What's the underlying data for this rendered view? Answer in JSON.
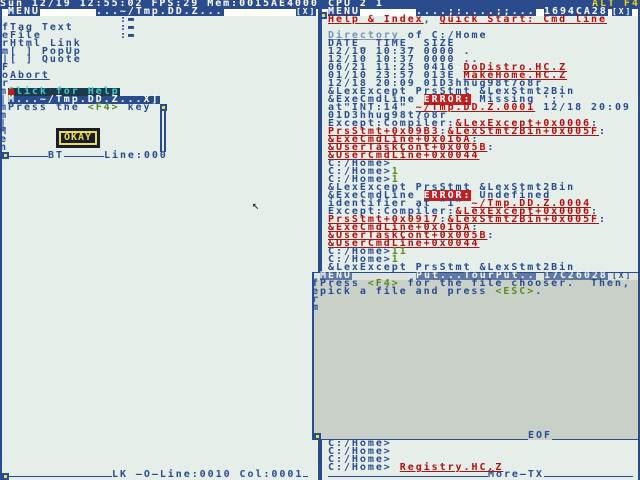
{
  "topbar": {
    "left": "Sun 12/19 12:55:02 FPS:29 Mem:0015AE4000",
    "cpu": "CPU 2 1",
    "alt": "ALT F4"
  },
  "left_window": {
    "menu": "MENU",
    "title": "...~/Tmp.DD.Z...",
    "close": "[X]",
    "status": "LK —O—Line:0010 Col:0001",
    "lines": [
      [
        {
          "t": "fTag Text"
        }
      ],
      [
        {
          "t": "eFile"
        }
      ],
      [
        {
          "t": "rHtml Link"
        }
      ],
      [
        {
          "t": "m[ ] PopUp"
        }
      ],
      [
        {
          "t": "|[ ] Quote"
        }
      ],
      [
        {
          "t": "F"
        }
      ],
      [
        {
          "t": "o"
        },
        {
          "t": "Abort",
          "c": "u"
        }
      ],
      [
        {
          "t": "r"
        }
      ]
    ]
  },
  "popup": {
    "help": "Click for Help",
    "title": "M...~/Tmp.DD.Z...X]",
    "text_pre": "Press the ",
    "key": "<F4>",
    "text_post": " key",
    "ok": "OKAY",
    "status_left": "BT",
    "status_right": "Line:000"
  },
  "right_window": {
    "menu": "MENU",
    "title": "....;;....;;...",
    "addr": "1694CA28",
    "close": "[X]",
    "lines": [
      [
        {
          "t": "Help & Index",
          "c": "r"
        },
        {
          "t": ", "
        },
        {
          "t": "Quick Start: Cmd line",
          "c": "r"
        }
      ],
      [
        {
          "t": ""
        }
      ],
      [
        {
          "t": "Directory",
          "c": "lk"
        },
        {
          "t": " of C:/Home"
        }
      ],
      [
        {
          "t": "DATE_ TIME_ SIZE"
        }
      ],
      [
        {
          "t": "12/10 10:37 0000 ."
        }
      ],
      [
        {
          "t": "12/10 10:37 0000 .."
        }
      ],
      [
        {
          "t": "06/21 11:25 0416 "
        },
        {
          "t": "DoDistro.HC.Z",
          "c": "r"
        }
      ],
      [
        {
          "t": "01/10 23:57 013E "
        },
        {
          "t": "MakeHome.HC.Z",
          "c": "r"
        }
      ],
      [
        {
          "t": "12/18 20:09 01D3hhug98t7o8r"
        }
      ],
      [
        {
          "t": "&LexExcept PrsStmt &LexStmt2Bin"
        }
      ],
      [
        {
          "t": "&ExeCmdLine "
        },
        {
          "t": "ERROR:",
          "c": "err"
        },
        {
          "t": " Missing ';'"
        }
      ],
      [
        {
          "t": "at\"INT:14\" "
        },
        {
          "t": "~/Tmp.DD.Z.0001",
          "c": "r"
        },
        {
          "t": " 12/18 20:09"
        }
      ],
      [
        {
          "t": "01D3hhug98t7o8r"
        }
      ],
      [
        {
          "t": "Except:Compiler:"
        },
        {
          "t": "&LexExcept+0x0006",
          "c": "r"
        },
        {
          "t": ":"
        }
      ],
      [
        {
          "t": "PrsStmt+0x09B3",
          "c": "r"
        },
        {
          "t": ":"
        },
        {
          "t": "&LexStmt2Bin+0x005F",
          "c": "r"
        },
        {
          "t": ":"
        }
      ],
      [
        {
          "t": "&ExeCmdLine+0x016A",
          "c": "r"
        },
        {
          "t": ":"
        }
      ],
      [
        {
          "t": "&UserTaskCont+0x005B",
          "c": "r"
        },
        {
          "t": ":"
        }
      ],
      [
        {
          "t": "&UserCmdLine+0x0044",
          "c": "r"
        }
      ],
      [
        {
          "t": "C:/Home>"
        }
      ],
      [
        {
          "t": "C:/Home>"
        },
        {
          "t": "1",
          "c": "g"
        }
      ],
      [
        {
          "t": "C:/Home>"
        },
        {
          "t": "1",
          "c": "g"
        }
      ],
      [
        {
          "t": "&LexExcept PrsStmt &LexStmt2Bin"
        }
      ],
      [
        {
          "t": "&ExeCmdLine "
        },
        {
          "t": "ERROR:",
          "c": "err"
        },
        {
          "t": " Undefined"
        }
      ],
      [
        {
          "t": "identifier at \"1\" "
        },
        {
          "t": "~/Tmp.DD.Z.0004",
          "c": "r"
        }
      ],
      [
        {
          "t": "Except:Compiler:"
        },
        {
          "t": "&LexExcept+0x0006",
          "c": "r"
        },
        {
          "t": ":"
        }
      ],
      [
        {
          "t": "PrsStmt+0x0917",
          "c": "r"
        },
        {
          "t": ":"
        },
        {
          "t": "&LexStmt2Bin+0x005F",
          "c": "r"
        },
        {
          "t": ":"
        }
      ],
      [
        {
          "t": "&ExeCmdLine+0x016A",
          "c": "r"
        },
        {
          "t": ":"
        }
      ],
      [
        {
          "t": "&UserTaskCont+0x005B",
          "c": "r"
        },
        {
          "t": ":"
        }
      ],
      [
        {
          "t": "&UserCmdLine+0x0044",
          "c": "r"
        }
      ],
      [
        {
          "t": "C:/Home>"
        },
        {
          "t": "11",
          "c": "g"
        }
      ],
      [
        {
          "t": "C:/Home>"
        },
        {
          "t": "1",
          "c": "g"
        }
      ],
      [
        {
          "t": "&LexExcept PrsStmt &LexStmt2Bin"
        }
      ]
    ]
  },
  "put_window": {
    "menu": "MENU",
    "title": "Put...TourPut..",
    "addr": "17C26028",
    "close": "[X]",
    "status": "EOF",
    "lines": [
      [
        {
          "t": "fPress "
        },
        {
          "t": "<F4>",
          "c": "g"
        },
        {
          "t": " for the file chooser.  Then,"
        }
      ],
      [
        {
          "t": "epick a file and press "
        },
        {
          "t": "<ESC>",
          "c": "g"
        },
        {
          "t": "."
        }
      ],
      [
        {
          "t": "r"
        }
      ],
      [
        {
          "t": "m"
        }
      ]
    ]
  },
  "cmd_window": {
    "status": "More—TX",
    "lines": [
      [
        {
          "t": "C:/Home>"
        }
      ],
      [
        {
          "t": "C:/Home>"
        }
      ],
      [
        {
          "t": "C:/Home>"
        }
      ],
      [
        {
          "t": "C:/Home> "
        },
        {
          "t": "Registry.HC.Z",
          "c": "r"
        }
      ]
    ]
  }
}
